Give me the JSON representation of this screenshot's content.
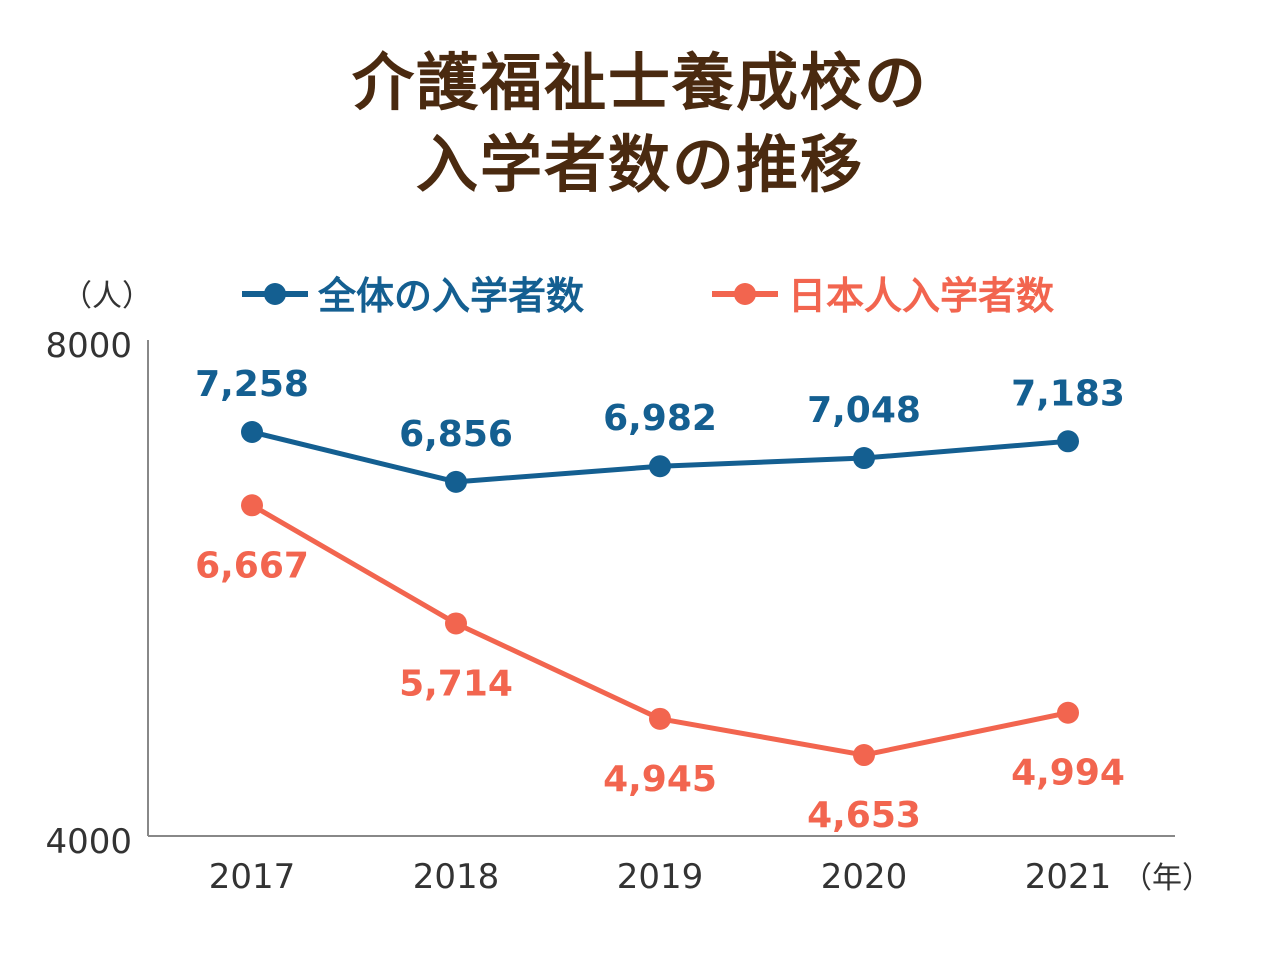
{
  "chart_data": {
    "type": "line",
    "title_lines": [
      "介護福祉士養成校の",
      "入学者数の推移"
    ],
    "categories": [
      "2017",
      "2018",
      "2019",
      "2020",
      "2021"
    ],
    "ylim": [
      4000,
      8000
    ],
    "ytick_labels": [
      "8000",
      "4000"
    ],
    "y_unit": "（人）",
    "x_unit": "（年）",
    "series": [
      {
        "name": "全体の入学者数",
        "color": "#145f91",
        "values": [
          7258,
          6856,
          6982,
          7048,
          7183
        ],
        "labels": [
          "7,258",
          "6,856",
          "6,982",
          "7,048",
          "7,183"
        ],
        "label_position": "above"
      },
      {
        "name": "日本人入学者数",
        "color": "#f2654f",
        "values": [
          6667,
          5714,
          4945,
          4653,
          4994
        ],
        "labels": [
          "6,667",
          "5,714",
          "4,945",
          "4,653",
          "4,994"
        ],
        "label_position": "below"
      }
    ],
    "legend_position": "top",
    "grid": false
  }
}
